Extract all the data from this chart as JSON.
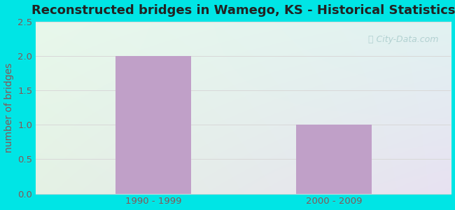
{
  "title": "Reconstructed bridges in Wamego, KS - Historical Statistics",
  "categories": [
    "1990 - 1999",
    "2000 - 2009"
  ],
  "values": [
    2,
    1
  ],
  "bar_color": "#c0a0c8",
  "ylabel": "number of bridges",
  "ylim": [
    0,
    2.5
  ],
  "yticks": [
    0,
    0.5,
    1,
    1.5,
    2,
    2.5
  ],
  "title_fontsize": 13,
  "ylabel_fontsize": 10,
  "tick_fontsize": 9.5,
  "background_outer": "#00e5e5",
  "grad_top_left": "#e8f5e5",
  "grad_bottom_right": "#e8e5f5",
  "grid_color": "#d8d8d8",
  "tick_label_color": "#885555",
  "ylabel_color": "#885555",
  "title_color": "#222222",
  "watermark": "Ⓠ City-Data.com",
  "watermark_color": "#aacccc"
}
